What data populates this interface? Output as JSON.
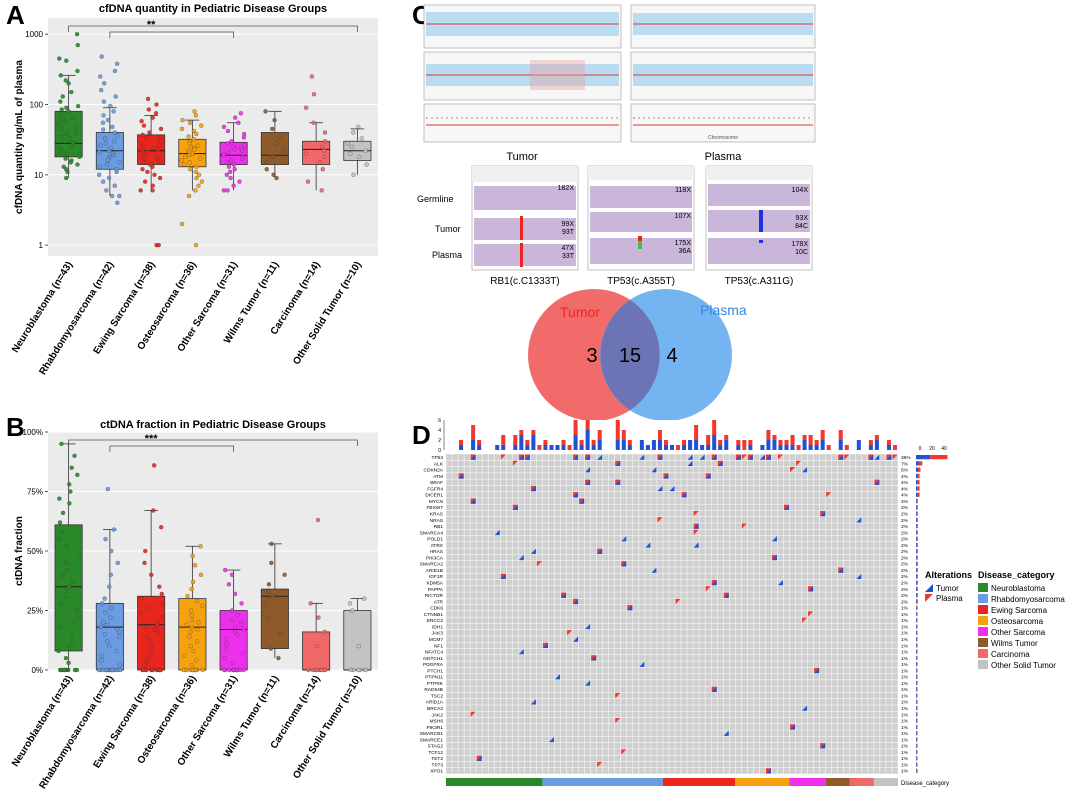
{
  "panels": {
    "a": "A",
    "b": "B",
    "c": "C",
    "d": "D"
  },
  "venn": {
    "tumor_label": "Tumor",
    "plasma_label": "Plasma",
    "tumor_only": "3",
    "shared": "15",
    "plasma_only": "4",
    "tumor_color": "#f26b6b",
    "plasma_color": "#5aa7ee"
  },
  "genomic": {
    "cn_labels": [
      "Tumor",
      "Plasma"
    ],
    "row_labels": [
      "Germline",
      "Tumor",
      "Plasma"
    ],
    "variants": [
      {
        "name": "RB1(c.C1333T)",
        "germline": "182X",
        "tumor": [
          "99X",
          "93T"
        ],
        "plasma": [
          "47X",
          "33T"
        ]
      },
      {
        "name": "TP53(c.A355T)",
        "germline": "118X",
        "tumor": [
          "107X"
        ],
        "plasma": [
          "175X",
          "36A"
        ]
      },
      {
        "name": "TP53(c.A311G)",
        "germline": "104X",
        "tumor": [
          "93X",
          "84C"
        ],
        "plasma": [
          "178X",
          "10C"
        ]
      }
    ],
    "chrom_axis": "Chromosome"
  },
  "oncoplot": {
    "genes": [
      "TP53",
      "ALK",
      "CDKN2A",
      "ATM",
      "BRAF",
      "FGFR4",
      "DICER1",
      "MYCN",
      "FBXW7",
      "KRAS",
      "NRAS",
      "RB1",
      "SMARCA4",
      "POLD1",
      "ATRX",
      "HRAS",
      "PIK3CA",
      "SMARCA2",
      "ARID1B",
      "IGF1R",
      "KDM5A",
      "PAPPA",
      "RICTOR",
      "ATR",
      "CDK6",
      "CTNNB1",
      "ERCC2",
      "IDH1",
      "JAK3",
      "MCM7",
      "NF1",
      "NFATC4",
      "NOTCH1",
      "PDGFRA",
      "PTCH1",
      "PTPN11",
      "PTPRK",
      "RAD54B",
      "TSC2",
      "ARID1A",
      "BRCA2",
      "JAK2",
      "MSH6",
      "PIK3R1",
      "SMARCB1",
      "SMARCE1",
      "STAG2",
      "TCF12",
      "TET2",
      "TP73",
      "XPO1"
    ],
    "percents": [
      "35%",
      "7%",
      "5%",
      "4%",
      "4%",
      "4%",
      "4%",
      "2%",
      "2%",
      "2%",
      "2%",
      "2%",
      "2%",
      "2%",
      "2%",
      "2%",
      "2%",
      "2%",
      "2%",
      "2%",
      "2%",
      "2%",
      "2%",
      "2%",
      "1%",
      "1%",
      "1%",
      "1%",
      "1%",
      "1%",
      "1%",
      "1%",
      "1%",
      "1%",
      "1%",
      "1%",
      "1%",
      "1%",
      "1%",
      "1%",
      "1%",
      "1%",
      "1%",
      "1%",
      "1%",
      "1%",
      "1%",
      "1%",
      "1%",
      "1%",
      "1%"
    ],
    "top_ticks": [
      "6",
      "4",
      "2",
      "0"
    ],
    "side_ticks": [
      "0",
      "20",
      "40"
    ],
    "category_track_label": "Disease_category",
    "alterations_title": "Alterations",
    "alterations": [
      {
        "label": "Tumor",
        "color": "#1f52d6"
      },
      {
        "label": "Plasma",
        "color": "#f2382c"
      }
    ],
    "category_title": "Disease_category",
    "categories": [
      {
        "label": "Neuroblastoma",
        "color": "#2a8a2a",
        "n": 16
      },
      {
        "label": "Rhabdomyosarcoma",
        "color": "#6b9be0",
        "n": 20
      },
      {
        "label": "Ewing Sarcoma",
        "color": "#e8261e",
        "n": 12
      },
      {
        "label": "Osteosarcoma",
        "color": "#f6a20f",
        "n": 9
      },
      {
        "label": "Other Sarcoma",
        "color": "#ee30ee",
        "n": 6
      },
      {
        "label": "Wilms Tumor",
        "color": "#8e5a2a",
        "n": 4
      },
      {
        "label": "Carcinoma",
        "color": "#f06868",
        "n": 4
      },
      {
        "label": "Other Solid Tumor",
        "color": "#c3c3c3",
        "n": 4
      }
    ]
  },
  "chart_data": [
    {
      "type": "box",
      "title": "cfDNA quantity in Pediatric Disease Groups",
      "ylabel": "cfDNA quantity ng/mL of plasma",
      "yscale": "log",
      "ylim": [
        0.7,
        1700
      ],
      "yticks": [
        1,
        10,
        100,
        1000
      ],
      "ytick_labels": [
        "1",
        "10",
        "100",
        "1000"
      ],
      "significance": "**",
      "categories": [
        "Neuroblastoma (n=43)",
        "Rhabdomyosarcoma (n=42)",
        "Ewing Sarcoma (n=38)",
        "Osteosarcoma (n=36)",
        "Other Sarcoma (n=31)",
        "Wilms Tumor (n=11)",
        "Carcinoma (n=14)",
        "Other Solid Tumor (n=10)"
      ],
      "colors": [
        "#2a8a2a",
        "#6b9be0",
        "#e8261e",
        "#f6a20f",
        "#ee30ee",
        "#8e5a2a",
        "#f06868",
        "#c3c3c3"
      ],
      "boxes": [
        {
          "low": 9,
          "q1": 18,
          "median": 28,
          "q3": 80,
          "high": 260
        },
        {
          "low": 5,
          "q1": 12,
          "median": 22,
          "q3": 40,
          "high": 90
        },
        {
          "low": 6,
          "q1": 14,
          "median": 22,
          "q3": 37,
          "high": 70
        },
        {
          "low": 6,
          "q1": 13,
          "median": 20,
          "q3": 32,
          "high": 60
        },
        {
          "low": 6,
          "q1": 14,
          "median": 19,
          "q3": 29,
          "high": 55
        },
        {
          "low": 9,
          "q1": 14,
          "median": 19,
          "q3": 40,
          "high": 80
        },
        {
          "low": 6,
          "q1": 14,
          "median": 23,
          "q3": 30,
          "high": 55
        },
        {
          "low": 10,
          "q1": 16,
          "median": 22,
          "q3": 30,
          "high": 45
        }
      ],
      "points": [
        [
          1000,
          700,
          450,
          420,
          300,
          260,
          220,
          200,
          150,
          130,
          110,
          95,
          90,
          85,
          80,
          75,
          70,
          65,
          60,
          55,
          52,
          48,
          45,
          40,
          38,
          35,
          33,
          30,
          28,
          26,
          24,
          22,
          20,
          19,
          18,
          17,
          16,
          15,
          14,
          13,
          12,
          11,
          9
        ],
        [
          480,
          380,
          300,
          250,
          200,
          160,
          130,
          110,
          95,
          80,
          70,
          60,
          55,
          48,
          44,
          40,
          36,
          33,
          30,
          28,
          26,
          24,
          22,
          21,
          20,
          19,
          18,
          17,
          16,
          15,
          14,
          13,
          12,
          11,
          10,
          9,
          8,
          7,
          6,
          5,
          5,
          4
        ],
        [
          120,
          100,
          85,
          75,
          65,
          58,
          50,
          45,
          40,
          37,
          34,
          32,
          30,
          28,
          26,
          25,
          24,
          23,
          22,
          21,
          20,
          19,
          18,
          17,
          16,
          15,
          14,
          13,
          12,
          11,
          10,
          9,
          8,
          7,
          6,
          6,
          1,
          1
        ],
        [
          80,
          70,
          60,
          55,
          50,
          45,
          42,
          38,
          35,
          32,
          30,
          28,
          26,
          25,
          24,
          23,
          22,
          21,
          20,
          19,
          18,
          17,
          16,
          15,
          14,
          13,
          12,
          11,
          10,
          9,
          8,
          7,
          6,
          5,
          2,
          1
        ],
        [
          75,
          65,
          55,
          48,
          42,
          38,
          34,
          30,
          28,
          26,
          25,
          24,
          23,
          22,
          21,
          20,
          19,
          18,
          17,
          16,
          15,
          14,
          13,
          12,
          11,
          10,
          9,
          8,
          7,
          6,
          6
        ],
        [
          80,
          60,
          45,
          35,
          28,
          22,
          18,
          15,
          12,
          10,
          9
        ],
        [
          250,
          140,
          90,
          55,
          40,
          30,
          25,
          22,
          20,
          18,
          15,
          12,
          8,
          6
        ],
        [
          48,
          40,
          33,
          28,
          25,
          22,
          20,
          18,
          14,
          10
        ]
      ]
    },
    {
      "type": "box",
      "title": "ctDNA fraction in Pediatric Disease Groups",
      "ylabel": "ctDNA fraction",
      "ylim": [
        0,
        1
      ],
      "yticks": [
        0,
        0.25,
        0.5,
        0.75,
        1
      ],
      "ytick_labels": [
        "0%",
        "25%",
        "50%",
        "75%",
        "100%"
      ],
      "significance": "***",
      "categories": [
        "Neuroblastoma (n=43)",
        "Rhabdomyosarcoma (n=42)",
        "Ewing Sarcoma (n=38)",
        "Osteosarcoma (n=36)",
        "Other Sarcoma (n=31)",
        "Wilms Tumor (n=11)",
        "Carcinoma (n=14)",
        "Other Solid Tumor (n=10)"
      ],
      "colors": [
        "#2a8a2a",
        "#6b9be0",
        "#e8261e",
        "#f6a20f",
        "#ee30ee",
        "#8e5a2a",
        "#f06868",
        "#c3c3c3"
      ],
      "boxes": [
        {
          "low": 0,
          "q1": 0.08,
          "median": 0.35,
          "q3": 0.61,
          "high": 0.95
        },
        {
          "low": 0,
          "q1": 0,
          "median": 0.18,
          "q3": 0.28,
          "high": 0.59
        },
        {
          "low": 0,
          "q1": 0,
          "median": 0.19,
          "q3": 0.31,
          "high": 0.67
        },
        {
          "low": 0,
          "q1": 0,
          "median": 0.18,
          "q3": 0.3,
          "high": 0.52
        },
        {
          "low": 0,
          "q1": 0,
          "median": 0.17,
          "q3": 0.25,
          "high": 0.42
        },
        {
          "low": 0.05,
          "q1": 0.09,
          "median": 0.31,
          "q3": 0.34,
          "high": 0.53
        },
        {
          "low": 0,
          "q1": 0,
          "median": 0,
          "q3": 0.16,
          "high": 0.28
        },
        {
          "low": 0,
          "q1": 0,
          "median": 0,
          "q3": 0.25,
          "high": 0.3
        }
      ],
      "points": [
        [
          0.95,
          0.9,
          0.85,
          0.82,
          0.78,
          0.75,
          0.72,
          0.7,
          0.66,
          0.62,
          0.58,
          0.55,
          0.52,
          0.48,
          0.45,
          0.42,
          0.4,
          0.37,
          0.35,
          0.33,
          0.3,
          0.28,
          0.25,
          0.22,
          0.2,
          0.18,
          0.15,
          0.12,
          0.1,
          0.08,
          0.05,
          0.03,
          0,
          0,
          0,
          0,
          0,
          0,
          0,
          0,
          0,
          0,
          0
        ],
        [
          0.76,
          0.59,
          0.55,
          0.5,
          0.45,
          0.4,
          0.35,
          0.3,
          0.28,
          0.26,
          0.24,
          0.22,
          0.2,
          0.19,
          0.18,
          0.17,
          0.16,
          0.15,
          0.14,
          0.12,
          0.1,
          0.08,
          0.06,
          0.04,
          0.02,
          0,
          0,
          0,
          0,
          0,
          0,
          0,
          0,
          0,
          0,
          0,
          0,
          0,
          0,
          0,
          0,
          0
        ],
        [
          0.86,
          0.67,
          0.6,
          0.5,
          0.45,
          0.4,
          0.35,
          0.32,
          0.3,
          0.28,
          0.26,
          0.24,
          0.22,
          0.2,
          0.19,
          0.18,
          0.17,
          0.16,
          0.14,
          0.12,
          0.1,
          0.08,
          0.06,
          0.04,
          0.02,
          0,
          0,
          0,
          0,
          0,
          0,
          0,
          0,
          0,
          0,
          0,
          0,
          0
        ],
        [
          0.52,
          0.48,
          0.44,
          0.4,
          0.37,
          0.34,
          0.31,
          0.29,
          0.27,
          0.25,
          0.23,
          0.21,
          0.2,
          0.19,
          0.18,
          0.17,
          0.16,
          0.14,
          0.12,
          0.1,
          0.08,
          0.06,
          0.04,
          0.02,
          0,
          0,
          0,
          0,
          0,
          0,
          0,
          0,
          0,
          0,
          0,
          0
        ],
        [
          0.42,
          0.4,
          0.36,
          0.32,
          0.28,
          0.25,
          0.23,
          0.21,
          0.2,
          0.19,
          0.18,
          0.17,
          0.16,
          0.15,
          0.13,
          0.11,
          0.09,
          0.07,
          0.05,
          0.03,
          0,
          0,
          0,
          0,
          0,
          0,
          0,
          0,
          0,
          0,
          0
        ],
        [
          0.53,
          0.45,
          0.4,
          0.36,
          0.33,
          0.31,
          0.28,
          0.22,
          0.15,
          0.09,
          0.05
        ],
        [
          0.63,
          0.28,
          0.22,
          0.16,
          0.1,
          0,
          0,
          0,
          0,
          0,
          0,
          0,
          0,
          0
        ],
        [
          0.3,
          0.28,
          0.25,
          0.1,
          0,
          0,
          0,
          0,
          0,
          0
        ]
      ]
    }
  ]
}
